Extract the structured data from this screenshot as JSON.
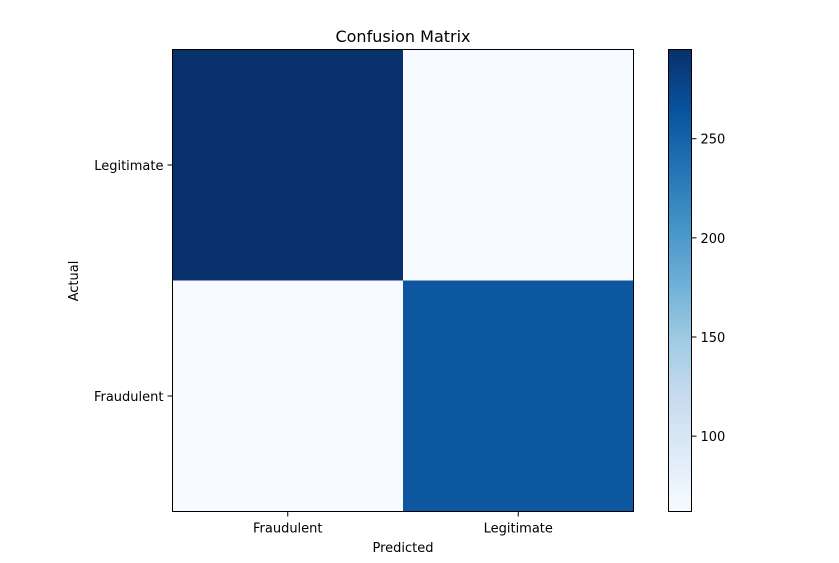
{
  "chart_data": {
    "type": "heatmap",
    "title": "Confusion Matrix",
    "xlabel": "Predicted",
    "ylabel": "Actual",
    "x_categories": [
      "Fraudulent",
      "Legitimate"
    ],
    "y_categories": [
      "Legitimate",
      "Fraudulent"
    ],
    "matrix": [
      [
        295,
        62
      ],
      [
        62,
        260
      ]
    ],
    "colormap": "Blues",
    "colorbar": {
      "vmin": 62,
      "vmax": 295,
      "ticks": [
        100,
        150,
        200,
        250
      ],
      "tick_labels": [
        "100",
        "150",
        "200",
        "250"
      ]
    },
    "grid": false
  }
}
